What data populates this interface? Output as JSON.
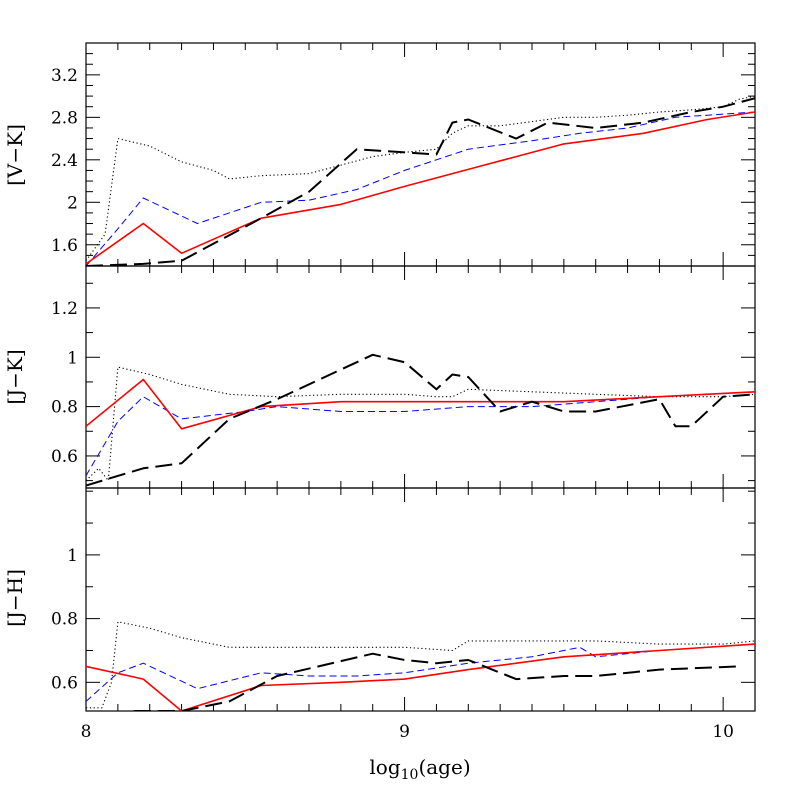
{
  "chart_data": [
    {
      "type": "line",
      "ylabel": "[V−K]",
      "xlim": [
        8,
        10.1
      ],
      "ylim": [
        1.4,
        3.5
      ],
      "yticks": [
        1.6,
        2,
        2.4,
        2.8,
        3.2
      ],
      "ytick_labels": [
        "1.6",
        "2",
        "2.4",
        "2.8",
        "3.2"
      ],
      "series": [
        {
          "style": "dotted",
          "color": "#000000",
          "x": [
            8.0,
            8.06,
            8.1,
            8.2,
            8.3,
            8.4,
            8.45,
            8.55,
            8.7,
            8.8,
            8.9,
            9.0,
            9.1,
            9.15,
            9.2,
            9.3,
            9.4,
            9.5,
            9.6,
            9.7,
            9.8,
            9.9,
            10.0,
            10.05,
            10.1
          ],
          "y": [
            1.45,
            1.7,
            2.6,
            2.53,
            2.38,
            2.3,
            2.22,
            2.25,
            2.27,
            2.35,
            2.43,
            2.47,
            2.5,
            2.65,
            2.72,
            2.72,
            2.76,
            2.8,
            2.8,
            2.82,
            2.85,
            2.87,
            2.9,
            2.97,
            3.0
          ]
        },
        {
          "style": "short-dash",
          "color": "#0000ff",
          "x": [
            8.0,
            8.1,
            8.18,
            8.35,
            8.55,
            8.7,
            8.85,
            9.0,
            9.2,
            9.4,
            9.55,
            9.7,
            9.85,
            10.1
          ],
          "y": [
            1.4,
            1.75,
            2.04,
            1.8,
            2.0,
            2.02,
            2.12,
            2.3,
            2.5,
            2.58,
            2.65,
            2.7,
            2.8,
            2.85
          ]
        },
        {
          "style": "solid",
          "color": "#ff0000",
          "x": [
            8.0,
            8.18,
            8.3,
            8.55,
            8.8,
            9.0,
            9.25,
            9.5,
            9.75,
            9.95,
            10.1
          ],
          "y": [
            1.42,
            1.8,
            1.52,
            1.85,
            1.98,
            2.15,
            2.35,
            2.55,
            2.65,
            2.78,
            2.85
          ]
        },
        {
          "style": "long-dash",
          "color": "#000000",
          "x": [
            8.0,
            8.18,
            8.3,
            8.55,
            8.7,
            8.85,
            9.1,
            9.15,
            9.2,
            9.35,
            9.45,
            9.6,
            9.75,
            9.9,
            10.0,
            10.1
          ],
          "y": [
            1.4,
            1.42,
            1.45,
            1.85,
            2.1,
            2.5,
            2.45,
            2.75,
            2.78,
            2.6,
            2.75,
            2.7,
            2.75,
            2.85,
            2.9,
            2.98
          ]
        }
      ]
    },
    {
      "type": "line",
      "ylabel": "[J−K]",
      "xlim": [
        8,
        10.1
      ],
      "ylim": [
        0.47,
        1.37
      ],
      "yticks": [
        0.6,
        0.8,
        1,
        1.2
      ],
      "ytick_labels": [
        "0.6",
        "0.8",
        "1",
        "1.2"
      ],
      "series": [
        {
          "style": "dotted",
          "color": "#000000",
          "x": [
            8.0,
            8.04,
            8.07,
            8.1,
            8.2,
            8.3,
            8.45,
            8.6,
            8.8,
            9.0,
            9.1,
            9.15,
            9.2,
            9.4,
            9.6,
            9.8,
            10.0,
            10.1
          ],
          "y": [
            0.5,
            0.55,
            0.5,
            0.96,
            0.93,
            0.89,
            0.85,
            0.84,
            0.85,
            0.85,
            0.84,
            0.84,
            0.87,
            0.86,
            0.85,
            0.84,
            0.84,
            0.85
          ]
        },
        {
          "style": "short-dash",
          "color": "#0000ff",
          "x": [
            8.0,
            8.1,
            8.18,
            8.3,
            8.5,
            8.6,
            8.8,
            9.0,
            9.2,
            9.4,
            9.6,
            9.8,
            10.1
          ],
          "y": [
            0.52,
            0.74,
            0.84,
            0.75,
            0.78,
            0.8,
            0.78,
            0.78,
            0.8,
            0.8,
            0.82,
            0.84,
            0.86
          ]
        },
        {
          "style": "solid",
          "color": "#ff0000",
          "x": [
            8.0,
            8.18,
            8.3,
            8.55,
            8.8,
            9.2,
            9.5,
            9.8,
            10.1
          ],
          "y": [
            0.72,
            0.91,
            0.71,
            0.8,
            0.82,
            0.82,
            0.82,
            0.84,
            0.86
          ]
        },
        {
          "style": "long-dash",
          "color": "#000000",
          "x": [
            8.0,
            8.18,
            8.3,
            8.45,
            8.6,
            8.9,
            9.0,
            9.1,
            9.15,
            9.2,
            9.3,
            9.4,
            9.5,
            9.6,
            9.8,
            9.85,
            9.9,
            10.0,
            10.1
          ],
          "y": [
            0.48,
            0.55,
            0.57,
            0.75,
            0.83,
            1.01,
            0.98,
            0.87,
            0.93,
            0.92,
            0.78,
            0.82,
            0.78,
            0.78,
            0.83,
            0.72,
            0.72,
            0.84,
            0.85
          ]
        }
      ]
    },
    {
      "type": "line",
      "xlabel": "log10(age)",
      "ylabel": "[J−H]",
      "xlim": [
        8,
        10.1
      ],
      "ylim": [
        0.51,
        1.21
      ],
      "yticks": [
        0.6,
        0.8,
        1
      ],
      "ytick_labels": [
        "0.6",
        "0.8",
        "1"
      ],
      "xticks": [
        8,
        9,
        10
      ],
      "xtick_labels": [
        "8",
        "9",
        "10"
      ],
      "series": [
        {
          "style": "dotted",
          "color": "#000000",
          "x": [
            8.0,
            8.05,
            8.08,
            8.1,
            8.2,
            8.3,
            8.45,
            8.6,
            8.8,
            9.0,
            9.15,
            9.2,
            9.4,
            9.6,
            9.8,
            10.0,
            10.1
          ],
          "y": [
            0.52,
            0.52,
            0.6,
            0.79,
            0.77,
            0.74,
            0.71,
            0.71,
            0.71,
            0.71,
            0.7,
            0.73,
            0.73,
            0.73,
            0.72,
            0.72,
            0.73
          ]
        },
        {
          "style": "short-dash",
          "color": "#0000ff",
          "x": [
            8.0,
            8.1,
            8.18,
            8.35,
            8.55,
            8.7,
            8.85,
            9.0,
            9.2,
            9.4,
            9.55,
            9.6,
            9.8,
            10.1
          ],
          "y": [
            0.54,
            0.63,
            0.66,
            0.58,
            0.63,
            0.62,
            0.62,
            0.63,
            0.66,
            0.68,
            0.71,
            0.68,
            0.7,
            0.72
          ]
        },
        {
          "style": "solid",
          "color": "#ff0000",
          "x": [
            8.0,
            8.18,
            8.3,
            8.55,
            8.8,
            9.0,
            9.2,
            9.5,
            9.8,
            10.1
          ],
          "y": [
            0.65,
            0.61,
            0.51,
            0.59,
            0.6,
            0.61,
            0.64,
            0.68,
            0.7,
            0.72
          ]
        },
        {
          "style": "long-dash",
          "color": "#000000",
          "x": [
            8.15,
            8.3,
            8.45,
            8.6,
            8.9,
            9.0,
            9.1,
            9.2,
            9.35,
            9.5,
            9.6,
            9.8,
            10.05
          ],
          "y": [
            0.51,
            0.51,
            0.54,
            0.62,
            0.69,
            0.67,
            0.66,
            0.67,
            0.61,
            0.62,
            0.62,
            0.64,
            0.65
          ]
        }
      ]
    }
  ]
}
